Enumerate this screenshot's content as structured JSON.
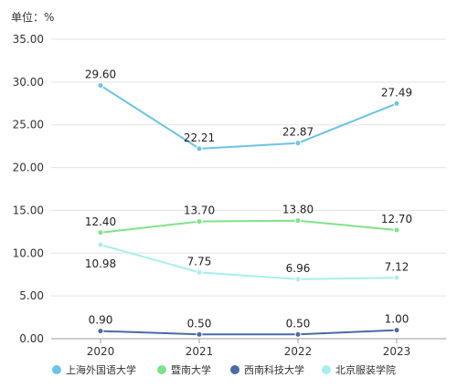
{
  "unit_label": "单位：%",
  "chart_data": {
    "type": "line",
    "categories": [
      "2020",
      "2021",
      "2022",
      "2023"
    ],
    "ylim": [
      0,
      35
    ],
    "yticks": [
      "0.00",
      "5.00",
      "10.00",
      "15.00",
      "20.00",
      "25.00",
      "30.00",
      "35.00"
    ],
    "grid": true,
    "legend_position": "bottom",
    "series": [
      {
        "name": "上海外国语大学",
        "color": "#6cc3e6",
        "values": [
          29.6,
          22.21,
          22.87,
          27.49
        ],
        "labels": [
          "29.60",
          "22.21",
          "22.87",
          "27.49"
        ],
        "label_side": "above"
      },
      {
        "name": "暨南大学",
        "color": "#7fe388",
        "values": [
          12.4,
          13.7,
          13.8,
          12.7
        ],
        "labels": [
          "12.40",
          "13.70",
          "13.80",
          "12.70"
        ],
        "label_side": "above"
      },
      {
        "name": "西南科技大学",
        "color": "#4a6aa8",
        "values": [
          0.9,
          0.5,
          0.5,
          1.0
        ],
        "labels": [
          "0.90",
          "0.50",
          "0.50",
          "1.00"
        ],
        "label_side": "above"
      },
      {
        "name": "北京服装学院",
        "color": "#a9eeee",
        "values": [
          10.98,
          7.75,
          6.96,
          7.12
        ],
        "labels": [
          "10.98",
          "7.75",
          "6.96",
          "7.12"
        ],
        "label_side": "mixed"
      }
    ]
  }
}
